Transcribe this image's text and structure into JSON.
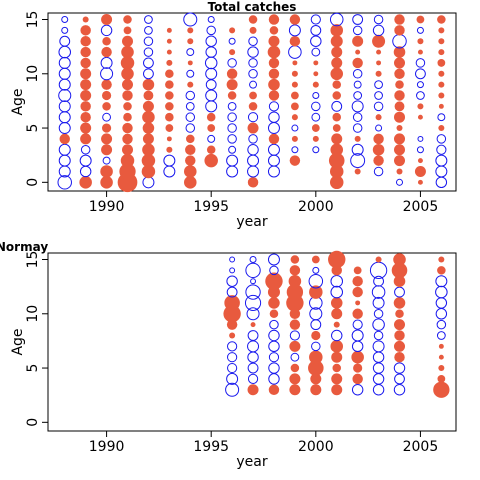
{
  "colors": {
    "positive": "#e85a3e",
    "negative": "#1a1aee",
    "frame": "#000000"
  },
  "chart_data": [
    {
      "type": "scatter",
      "subtype": "bubble residual plot",
      "title": "Total catches",
      "xlabel": "year",
      "ylabel": "Age",
      "xlim": [
        1987.2,
        2006.7
      ],
      "ylim": [
        -0.8,
        15.6
      ],
      "xticks": [
        1990,
        1995,
        2000,
        2005
      ],
      "yticks": [
        0,
        5,
        10,
        15
      ],
      "years": [
        1988,
        1989,
        1990,
        1991,
        1992,
        1993,
        1994,
        1995,
        1996,
        1997,
        1998,
        1999,
        2000,
        2001,
        2002,
        2003,
        2004,
        2005,
        2006
      ],
      "ages": [
        0,
        1,
        2,
        3,
        4,
        5,
        6,
        7,
        8,
        9,
        10,
        11,
        12,
        13,
        14,
        15
      ],
      "residuals": [
        [
          -1.5,
          1.3,
          1.3,
          3.2,
          -1,
          0,
          1.3,
          0,
          0,
          0.9,
          0,
          0,
          0,
          1.5,
          0,
          0,
          -0.3,
          0.2,
          -0.9
        ],
        [
          -1,
          -0.9,
          1.3,
          2.2,
          1.5,
          -1,
          1.3,
          0,
          -1,
          -1,
          -1,
          0,
          0,
          1.5,
          0.3,
          -0.6,
          0.3,
          1,
          -1
        ],
        [
          -1,
          -1,
          -0.4,
          1.5,
          1.5,
          -1,
          0.9,
          1.5,
          -1,
          -1,
          -1,
          0.9,
          0,
          2,
          -1.6,
          0.9,
          1,
          0.2,
          -1
        ],
        [
          -1,
          -0.6,
          1,
          1,
          1.3,
          0.3,
          0.9,
          0.6,
          -0.4,
          -0.9,
          -1,
          -0.3,
          -0.3,
          1.3,
          -1,
          1.1,
          1,
          -0.3,
          -0.7
        ],
        [
          0.9,
          1,
          1,
          0.9,
          1,
          0.2,
          0.6,
          -0.4,
          -0.6,
          -0.6,
          0.9,
          0.3,
          0.3,
          1,
          0.3,
          0.9,
          1,
          -0.2,
          -0.6
        ],
        [
          -1,
          1,
          0.7,
          0.9,
          1.1,
          0.5,
          -0.6,
          0.5,
          -0.6,
          1,
          -1,
          -0.3,
          0.5,
          0.5,
          -0.6,
          -0.3,
          0.3,
          0,
          0.3
        ],
        [
          -1,
          0.9,
          -0.5,
          0.6,
          1.3,
          0.6,
          -0.6,
          0.6,
          -0.6,
          -0.7,
          -0.9,
          0.3,
          -0.5,
          0.6,
          -0.6,
          0.3,
          1,
          0.2,
          -0.4
        ],
        [
          -1,
          0.9,
          0.6,
          0.6,
          1,
          0.6,
          -0.5,
          -1,
          -0.5,
          0.6,
          -0.7,
          0.5,
          -0.6,
          -0.8,
          -1,
          -0.6,
          0.8,
          0.3,
          0.2
        ],
        [
          -1.2,
          1,
          0.7,
          0.9,
          0.8,
          0.6,
          -0.6,
          -1,
          0.6,
          0.5,
          0.9,
          0.5,
          -0.3,
          0.6,
          -0.5,
          -0.5,
          0.9,
          -0.5,
          0.3
        ],
        [
          -1,
          1,
          0.9,
          1,
          1.1,
          0.6,
          0.3,
          -0.8,
          1,
          -0.4,
          1.1,
          0.3,
          0.3,
          0.6,
          -0.4,
          -0.5,
          0.6,
          -0.3,
          0.3
        ],
        [
          -1,
          1,
          -1.2,
          1.3,
          -0.8,
          0.6,
          -0.4,
          -1,
          0.9,
          -0.6,
          0.9,
          0.3,
          0.2,
          1.3,
          -0.6,
          0.3,
          0.9,
          -0.8,
          0.3
        ],
        [
          -1,
          0.9,
          -1,
          1.5,
          -0.8,
          0.3,
          0.2,
          -1.1,
          -0.6,
          -0.6,
          0.9,
          0.2,
          0.2,
          1,
          0.9,
          0.2,
          1,
          -0.6,
          0.5
        ],
        [
          -1.1,
          0.9,
          0.9,
          1.3,
          -0.6,
          0.2,
          -0.4,
          -0.9,
          0.3,
          -0.9,
          1.3,
          -1.3,
          -0.5,
          1,
          0.2,
          0.2,
          1.1,
          0.2,
          0.3
        ],
        [
          -0.8,
          0.9,
          0.6,
          1,
          -0.6,
          0.2,
          0.3,
          -0.9,
          -0.3,
          -0.6,
          1,
          0.9,
          -0.9,
          1.2,
          1,
          1.4,
          -1.5,
          0.3,
          0.3
        ],
        [
          -0.3,
          0.9,
          -0.9,
          0.5,
          -0.5,
          0.2,
          0.3,
          -0.6,
          0.3,
          0.4,
          0.6,
          -1,
          -0.8,
          1.3,
          -0.6,
          -0.9,
          0.9,
          -0.3,
          0.3
        ],
        [
          -0.3,
          0.3,
          1,
          0.6,
          -0.5,
          0,
          -1.4,
          -0.3,
          0,
          0.6,
          0.9,
          0.9,
          -0.7,
          -1.3,
          -0.8,
          -0.6,
          0.9,
          0.5,
          0.6
        ]
      ]
    },
    {
      "type": "scatter",
      "subtype": "bubble residual plot",
      "title": "Normay",
      "xlabel": "year",
      "ylabel": "Age",
      "xlim": [
        1987.2,
        2006.7
      ],
      "ylim": [
        -0.8,
        15.6
      ],
      "xticks": [
        1990,
        1995,
        2000,
        2005
      ],
      "yticks": [
        0,
        5,
        10,
        15
      ],
      "years": [
        1996,
        1997,
        1998,
        1999,
        2000,
        2001,
        2002,
        2003,
        2004,
        2006
      ],
      "ages": [
        3,
        4,
        5,
        6,
        7,
        8,
        9,
        10,
        11,
        12,
        13,
        14,
        15
      ],
      "residuals": [
        [
          -1.4,
          1,
          0.9,
          1,
          1,
          1,
          -0.9,
          -0.9,
          -0.9,
          2.2
        ],
        [
          -1,
          -0.7,
          -0.9,
          1,
          1,
          1,
          0.9,
          -0.9,
          -0.8,
          0.5
        ],
        [
          -0.7,
          -0.8,
          -0.9,
          0.6,
          2,
          0.6,
          0.7,
          -0.9,
          -0.9,
          0.3
        ],
        [
          -0.7,
          -0.9,
          -0.7,
          -0.5,
          1.5,
          1,
          1.3,
          -0.9,
          0.9,
          0.2
        ],
        [
          -0.7,
          -1,
          -0.9,
          1,
          -0.6,
          1.3,
          -0.9,
          -1,
          1,
          0.2
        ],
        [
          0.3,
          -0.8,
          -0.9,
          -0.7,
          0.7,
          -0.9,
          -1,
          -0.6,
          0.9,
          -0.5
        ],
        [
          0.9,
          0.2,
          -0.6,
          0.9,
          -0.8,
          0.3,
          -0.7,
          -1.1,
          1,
          -0.6
        ],
        [
          2.5,
          -1.2,
          0.6,
          0.9,
          -1.2,
          1,
          0.9,
          -0.6,
          0.6,
          -0.9
        ],
        [
          2,
          -1.9,
          1.1,
          2.5,
          -1.3,
          1.1,
          0.2,
          -1,
          1.1,
          -0.9
        ],
        [
          -0.8,
          -1.7,
          1.2,
          2.2,
          1.5,
          -1.1,
          0.9,
          -1.3,
          -0.8,
          -1.1
        ],
        [
          -0.9,
          -0.2,
          2.5,
          1.3,
          -1.5,
          -1.1,
          0.9,
          -0.8,
          1.1,
          -1
        ],
        [
          -0.2,
          -1.7,
          -0.6,
          0.9,
          -0.3,
          0.9,
          0.5,
          -2.2,
          2,
          0.6
        ],
        [
          -0.2,
          -0.3,
          -1,
          0.6,
          0.5,
          2.5,
          0,
          0.3,
          1.3,
          0.3
        ]
      ]
    }
  ]
}
